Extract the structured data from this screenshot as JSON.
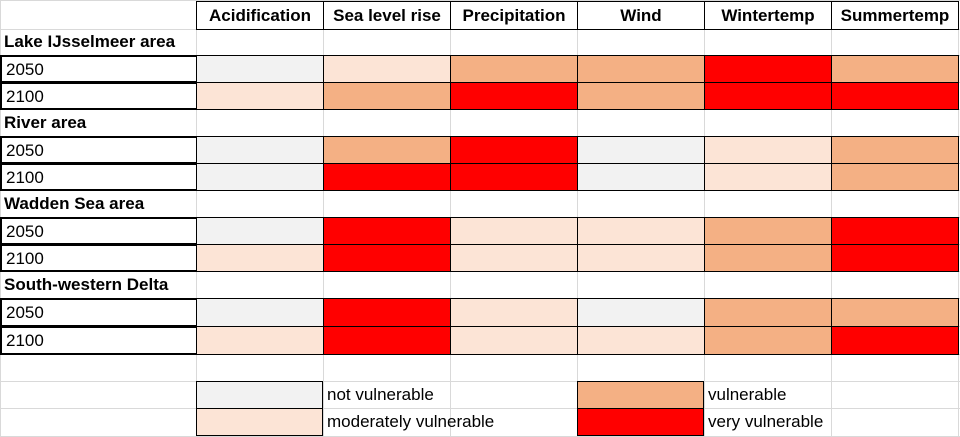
{
  "colors": {
    "not vulnerable": "#f2f2f2",
    "moderately vulnerable": "#fce4d6",
    "vulnerable": "#f4b084",
    "very vulnerable": "#ff0000"
  },
  "chart_data": {
    "type": "heatmap",
    "columns": [
      "Acidification",
      "Sea level rise",
      "Precipitation",
      "Wind",
      "Wintertemp",
      "Summertemp"
    ],
    "regions": [
      {
        "name": "Lake IJsselmeer area",
        "rows": [
          {
            "label": "2050",
            "values": [
              "not vulnerable",
              "moderately vulnerable",
              "vulnerable",
              "vulnerable",
              "very vulnerable",
              "vulnerable"
            ]
          },
          {
            "label": "2100",
            "values": [
              "moderately vulnerable",
              "vulnerable",
              "very vulnerable",
              "vulnerable",
              "very vulnerable",
              "very vulnerable"
            ]
          }
        ]
      },
      {
        "name": "River area",
        "rows": [
          {
            "label": "2050",
            "values": [
              "not vulnerable",
              "vulnerable",
              "very vulnerable",
              "not vulnerable",
              "moderately vulnerable",
              "vulnerable"
            ]
          },
          {
            "label": "2100",
            "values": [
              "not vulnerable",
              "very vulnerable",
              "very vulnerable",
              "not vulnerable",
              "moderately vulnerable",
              "vulnerable"
            ]
          }
        ]
      },
      {
        "name": "Wadden Sea area",
        "rows": [
          {
            "label": "2050",
            "values": [
              "not vulnerable",
              "very vulnerable",
              "moderately vulnerable",
              "moderately vulnerable",
              "vulnerable",
              "very vulnerable"
            ]
          },
          {
            "label": "2100",
            "values": [
              "moderately vulnerable",
              "very vulnerable",
              "moderately vulnerable",
              "moderately vulnerable",
              "vulnerable",
              "very vulnerable"
            ]
          }
        ]
      },
      {
        "name": "South-western Delta",
        "rows": [
          {
            "label": "2050",
            "values": [
              "not vulnerable",
              "very vulnerable",
              "moderately vulnerable",
              "not vulnerable",
              "vulnerable",
              "vulnerable"
            ]
          },
          {
            "label": "2100",
            "values": [
              "moderately vulnerable",
              "very vulnerable",
              "moderately vulnerable",
              "moderately vulnerable",
              "vulnerable",
              "very vulnerable"
            ]
          }
        ]
      }
    ],
    "legend": [
      "not vulnerable",
      "vulnerable",
      "moderately vulnerable",
      "very vulnerable"
    ]
  }
}
